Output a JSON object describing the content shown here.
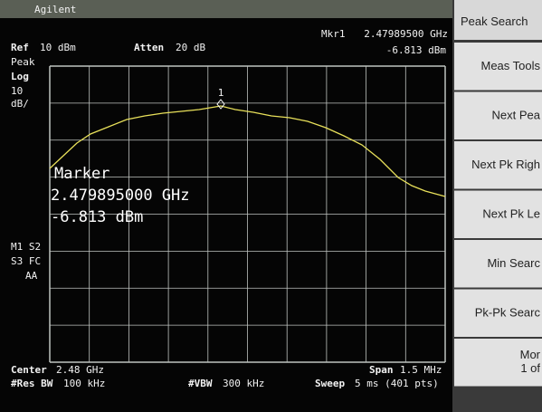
{
  "header": {
    "brand": "Agilent",
    "ref_label": "Ref",
    "ref_value": "10 dBm",
    "atten_label": "Atten",
    "atten_value": "20 dB",
    "marker_label": "Mkr1",
    "marker_freq": "2.47989500 GHz",
    "marker_level": "-6.813 dBm"
  },
  "left_labels": [
    "Peak",
    "Log",
    "10",
    "dB/",
    "M1 S2",
    "S3 FC",
    "AA"
  ],
  "marker_id": "1",
  "marker_box": {
    "title": "Marker",
    "freq": "2.479895000 GHz",
    "level": "-6.813 dBm"
  },
  "footer": {
    "center_label": "Center",
    "center_value": "2.48 GHz",
    "rbw_label": "#Res BW",
    "rbw_value": "100 kHz",
    "vbw_label": "#VBW",
    "vbw_value": "300 kHz",
    "span_label": "Span",
    "span_value": "1.5 MHz",
    "sweep_label": "Sweep",
    "sweep_value": "5 ms (401 pts)"
  },
  "softkeys": {
    "title": "Peak Search",
    "keys": [
      "Meas Tools",
      "Next Pea",
      "Next Pk Righ",
      "Next Pk Le",
      "Min Searc",
      "Pk-Pk Searc",
      "Mor"
    ],
    "page": "1 of"
  }
}
